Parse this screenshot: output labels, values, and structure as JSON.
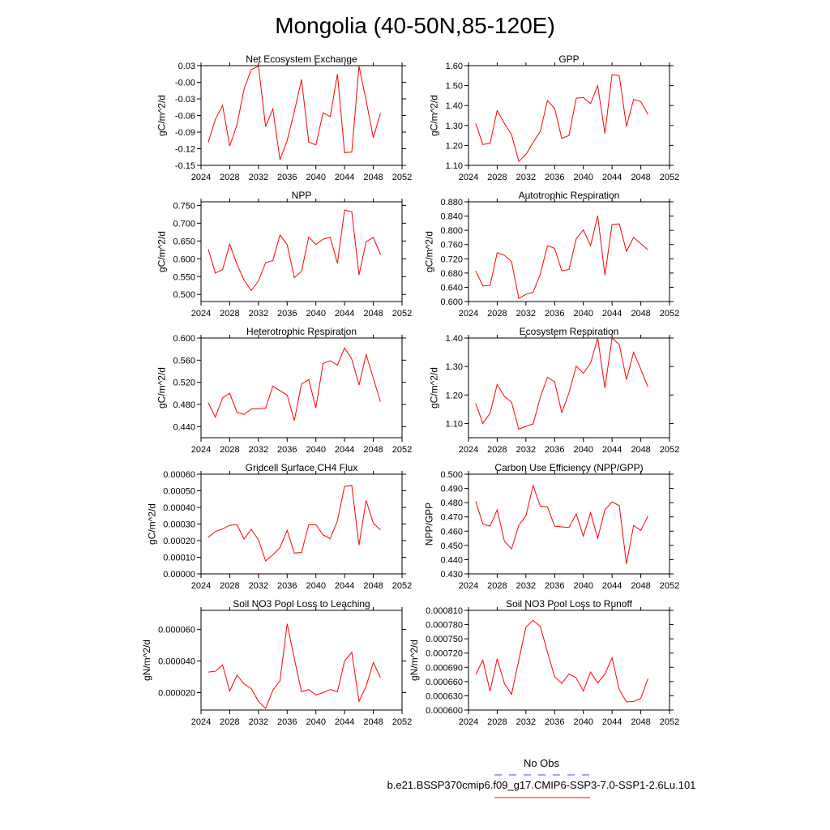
{
  "figure": {
    "title": "Mongolia (40-50N,85-120E)",
    "legend": [
      {
        "label": "No Obs",
        "color": "#4a4ad8",
        "dash": "dashed"
      },
      {
        "label": "b.e21.BSSP370cmip6.f09_g17.CMIP6-SSP3-7.0-SSP1-2.6Lu.101",
        "color": "#ff0000",
        "dash": "solid"
      }
    ],
    "series_color": "#ff0000"
  },
  "chart_data": [
    {
      "type": "line",
      "title": "Net Ecosystem Exchange",
      "xlabel": "",
      "ylabel": "gC/m^2/d",
      "xlim": [
        2024,
        2052
      ],
      "xticks": [
        2024,
        2028,
        2032,
        2036,
        2040,
        2044,
        2048,
        2052
      ],
      "xticklabels": [
        "2024",
        "2028",
        "2032",
        "2036",
        "2040",
        "2044",
        "2048",
        "2052"
      ],
      "ylim": [
        -0.15,
        0.03
      ],
      "yticks": [
        -0.15,
        -0.12,
        -0.09,
        -0.06,
        -0.03,
        0.0,
        0.03
      ],
      "yticklabels": [
        "-0.15",
        "-0.12",
        "-0.09",
        "-0.06",
        "-0.03",
        "-0.00",
        "0.03"
      ],
      "x": [
        2025,
        2026,
        2027,
        2028,
        2029,
        2030,
        2031,
        2032,
        2033,
        2034,
        2035,
        2036,
        2037,
        2038,
        2039,
        2040,
        2041,
        2042,
        2043,
        2044,
        2045,
        2046,
        2047,
        2048,
        2049
      ],
      "y": [
        -0.108,
        -0.067,
        -0.042,
        -0.115,
        -0.077,
        -0.012,
        0.023,
        0.029,
        -0.08,
        -0.048,
        -0.14,
        -0.105,
        -0.053,
        0.005,
        -0.108,
        -0.113,
        -0.055,
        -0.062,
        0.015,
        -0.127,
        -0.126,
        0.029,
        -0.033,
        -0.1,
        -0.056
      ]
    },
    {
      "type": "line",
      "title": "GPP",
      "xlabel": "",
      "ylabel": "gC/m^2/d",
      "xlim": [
        2024,
        2052
      ],
      "xticks": [
        2024,
        2028,
        2032,
        2036,
        2040,
        2044,
        2048,
        2052
      ],
      "xticklabels": [
        "2024",
        "2028",
        "2032",
        "2036",
        "2040",
        "2044",
        "2048",
        "2052"
      ],
      "ylim": [
        1.1,
        1.6
      ],
      "yticks": [
        1.1,
        1.2,
        1.3,
        1.4,
        1.5,
        1.6
      ],
      "yticklabels": [
        "1.10",
        "1.20",
        "1.30",
        "1.40",
        "1.50",
        "1.60"
      ],
      "x": [
        2025,
        2026,
        2027,
        2028,
        2029,
        2030,
        2031,
        2032,
        2033,
        2034,
        2035,
        2036,
        2037,
        2038,
        2039,
        2040,
        2041,
        2042,
        2043,
        2044,
        2045,
        2046,
        2047,
        2048,
        2049
      ],
      "y": [
        1.31,
        1.205,
        1.21,
        1.375,
        1.31,
        1.255,
        1.12,
        1.155,
        1.215,
        1.27,
        1.425,
        1.385,
        1.235,
        1.25,
        1.437,
        1.44,
        1.41,
        1.5,
        1.26,
        1.555,
        1.55,
        1.295,
        1.43,
        1.42,
        1.355
      ]
    },
    {
      "type": "line",
      "title": "NPP",
      "xlabel": "",
      "ylabel": "gC/m^2/d",
      "xlim": [
        2024,
        2052
      ],
      "xticks": [
        2024,
        2028,
        2032,
        2036,
        2040,
        2044,
        2048,
        2052
      ],
      "xticklabels": [
        "2024",
        "2028",
        "2032",
        "2036",
        "2040",
        "2044",
        "2048",
        "2052"
      ],
      "ylim": [
        0.48,
        0.76
      ],
      "yticks": [
        0.5,
        0.55,
        0.6,
        0.65,
        0.7,
        0.75
      ],
      "yticklabels": [
        "0.500",
        "0.550",
        "0.600",
        "0.650",
        "0.700",
        "0.750"
      ],
      "x": [
        2025,
        2026,
        2027,
        2028,
        2029,
        2030,
        2031,
        2032,
        2033,
        2034,
        2035,
        2036,
        2037,
        2038,
        2039,
        2040,
        2041,
        2042,
        2043,
        2044,
        2045,
        2046,
        2047,
        2048,
        2049
      ],
      "y": [
        0.627,
        0.56,
        0.57,
        0.641,
        0.585,
        0.54,
        0.511,
        0.538,
        0.589,
        0.595,
        0.667,
        0.64,
        0.547,
        0.565,
        0.661,
        0.64,
        0.655,
        0.661,
        0.587,
        0.737,
        0.732,
        0.555,
        0.648,
        0.66,
        0.612
      ]
    },
    {
      "type": "line",
      "title": "Autotrophic Respiration",
      "xlabel": "",
      "ylabel": "gC/m^2/d",
      "xlim": [
        2024,
        2052
      ],
      "xticks": [
        2024,
        2028,
        2032,
        2036,
        2040,
        2044,
        2048,
        2052
      ],
      "xticklabels": [
        "2024",
        "2028",
        "2032",
        "2036",
        "2040",
        "2044",
        "2048",
        "2052"
      ],
      "ylim": [
        0.6,
        0.88
      ],
      "yticks": [
        0.6,
        0.64,
        0.68,
        0.72,
        0.76,
        0.8,
        0.84,
        0.88
      ],
      "yticklabels": [
        "0.600",
        "0.640",
        "0.680",
        "0.720",
        "0.760",
        "0.800",
        "0.840",
        "0.880"
      ],
      "x": [
        2025,
        2026,
        2027,
        2028,
        2029,
        2030,
        2031,
        2032,
        2033,
        2034,
        2035,
        2036,
        2037,
        2038,
        2039,
        2040,
        2041,
        2042,
        2043,
        2044,
        2045,
        2046,
        2047,
        2048,
        2049
      ],
      "y": [
        0.686,
        0.644,
        0.645,
        0.737,
        0.73,
        0.712,
        0.609,
        0.62,
        0.626,
        0.677,
        0.757,
        0.749,
        0.686,
        0.69,
        0.776,
        0.801,
        0.757,
        0.841,
        0.674,
        0.816,
        0.818,
        0.741,
        0.78,
        0.762,
        0.745
      ]
    },
    {
      "type": "line",
      "title": "Heterotrophic Respiration",
      "xlabel": "",
      "ylabel": "gC/m^2/d",
      "xlim": [
        2024,
        2052
      ],
      "xticks": [
        2024,
        2028,
        2032,
        2036,
        2040,
        2044,
        2048,
        2052
      ],
      "xticklabels": [
        "2024",
        "2028",
        "2032",
        "2036",
        "2040",
        "2044",
        "2048",
        "2052"
      ],
      "ylim": [
        0.42,
        0.6
      ],
      "yticks": [
        0.44,
        0.48,
        0.52,
        0.56,
        0.6
      ],
      "yticklabels": [
        "0.440",
        "0.480",
        "0.520",
        "0.560",
        "0.600"
      ],
      "x": [
        2025,
        2026,
        2027,
        2028,
        2029,
        2030,
        2031,
        2032,
        2033,
        2034,
        2035,
        2036,
        2037,
        2038,
        2039,
        2040,
        2041,
        2042,
        2043,
        2044,
        2045,
        2046,
        2047,
        2048,
        2049
      ],
      "y": [
        0.483,
        0.457,
        0.492,
        0.5,
        0.466,
        0.462,
        0.472,
        0.472,
        0.473,
        0.513,
        0.505,
        0.497,
        0.451,
        0.517,
        0.525,
        0.474,
        0.554,
        0.559,
        0.551,
        0.582,
        0.562,
        0.515,
        0.57,
        0.527,
        0.485
      ]
    },
    {
      "type": "line",
      "title": "Ecosystem Respiration",
      "xlabel": "",
      "ylabel": "gC/m^2/d",
      "xlim": [
        2024,
        2052
      ],
      "xticks": [
        2024,
        2028,
        2032,
        2036,
        2040,
        2044,
        2048,
        2052
      ],
      "xticklabels": [
        "2024",
        "2028",
        "2032",
        "2036",
        "2040",
        "2044",
        "2048",
        "2052"
      ],
      "ylim": [
        1.05,
        1.4
      ],
      "yticks": [
        1.1,
        1.2,
        1.3,
        1.4
      ],
      "yticklabels": [
        "1.10",
        "1.20",
        "1.30",
        "1.40"
      ],
      "x": [
        2025,
        2026,
        2027,
        2028,
        2029,
        2030,
        2031,
        2032,
        2033,
        2034,
        2035,
        2036,
        2037,
        2038,
        2039,
        2040,
        2041,
        2042,
        2043,
        2044,
        2045,
        2046,
        2047,
        2048,
        2049
      ],
      "y": [
        1.17,
        1.1,
        1.136,
        1.237,
        1.195,
        1.175,
        1.08,
        1.09,
        1.098,
        1.192,
        1.262,
        1.246,
        1.138,
        1.208,
        1.301,
        1.276,
        1.312,
        1.4,
        1.225,
        1.4,
        1.377,
        1.254,
        1.35,
        1.29,
        1.228
      ]
    },
    {
      "type": "line",
      "title": "Gridcell Surface CH4 Flux",
      "xlabel": "",
      "ylabel": "gC/m^2/d",
      "xlim": [
        2024,
        2052
      ],
      "xticks": [
        2024,
        2028,
        2032,
        2036,
        2040,
        2044,
        2048,
        2052
      ],
      "xticklabels": [
        "2024",
        "2028",
        "2032",
        "2036",
        "2040",
        "2044",
        "2048",
        "2052"
      ],
      "ylim": [
        0.0,
        0.0006
      ],
      "yticks": [
        0.0,
        0.0001,
        0.0002,
        0.0003,
        0.0004,
        0.0005,
        0.0006
      ],
      "yticklabels": [
        "0.00000",
        "0.00010",
        "0.00020",
        "0.00030",
        "0.00040",
        "0.00050",
        "0.00060"
      ],
      "x": [
        2025,
        2026,
        2027,
        2028,
        2029,
        2030,
        2031,
        2032,
        2033,
        2034,
        2035,
        2036,
        2037,
        2038,
        2039,
        2040,
        2041,
        2042,
        2043,
        2044,
        2045,
        2046,
        2047,
        2048,
        2049
      ],
      "y": [
        0.00022,
        0.000255,
        0.00027,
        0.000292,
        0.000296,
        0.00021,
        0.000268,
        0.000205,
        7.8e-05,
        0.000114,
        0.000158,
        0.000262,
        0.000125,
        0.00013,
        0.000295,
        0.000297,
        0.000234,
        0.000212,
        0.00032,
        0.000527,
        0.000531,
        0.000172,
        0.000442,
        0.000305,
        0.000265
      ]
    },
    {
      "type": "line",
      "title": "Carbon Use Efficiency (NPP/GPP)",
      "xlabel": "",
      "ylabel": "NPP/GPP",
      "xlim": [
        2024,
        2052
      ],
      "xticks": [
        2024,
        2028,
        2032,
        2036,
        2040,
        2044,
        2048,
        2052
      ],
      "xticklabels": [
        "2024",
        "2028",
        "2032",
        "2036",
        "2040",
        "2044",
        "2048",
        "2052"
      ],
      "ylim": [
        0.43,
        0.5
      ],
      "yticks": [
        0.43,
        0.44,
        0.45,
        0.46,
        0.47,
        0.48,
        0.49,
        0.5
      ],
      "yticklabels": [
        "0.430",
        "0.440",
        "0.450",
        "0.460",
        "0.470",
        "0.480",
        "0.490",
        "0.500"
      ],
      "x": [
        2025,
        2026,
        2027,
        2028,
        2029,
        2030,
        2031,
        2032,
        2033,
        2034,
        2035,
        2036,
        2037,
        2038,
        2039,
        2040,
        2041,
        2042,
        2043,
        2044,
        2045,
        2046,
        2047,
        2048,
        2049
      ],
      "y": [
        0.481,
        0.465,
        0.4635,
        0.475,
        0.453,
        0.4475,
        0.464,
        0.471,
        0.492,
        0.4775,
        0.477,
        0.4635,
        0.463,
        0.4625,
        0.472,
        0.4565,
        0.473,
        0.455,
        0.475,
        0.4805,
        0.478,
        0.437,
        0.464,
        0.4605,
        0.4705
      ]
    },
    {
      "type": "line",
      "title": "Soil NO3 Pool Loss to Leaching",
      "xlabel": "",
      "ylabel": "gN/m^2/d",
      "xlim": [
        2024,
        2052
      ],
      "xticks": [
        2024,
        2028,
        2032,
        2036,
        2040,
        2044,
        2048,
        2052
      ],
      "xticklabels": [
        "2024",
        "2028",
        "2032",
        "2036",
        "2040",
        "2044",
        "2048",
        "2052"
      ],
      "ylim": [
        9e-06,
        7.2e-05
      ],
      "yticks": [
        2e-05,
        4e-05,
        6e-05
      ],
      "yticklabels": [
        "0.000020",
        "0.000040",
        "0.000060"
      ],
      "x": [
        2025,
        2026,
        2027,
        2028,
        2029,
        2030,
        2031,
        2032,
        2033,
        2034,
        2035,
        2036,
        2037,
        2038,
        2039,
        2040,
        2041,
        2042,
        2043,
        2044,
        2045,
        2046,
        2047,
        2048,
        2049
      ],
      "y": [
        3.3e-05,
        3.35e-05,
        3.75e-05,
        2.1e-05,
        3.1e-05,
        2.55e-05,
        2.25e-05,
        1.45e-05,
        1e-05,
        2.15e-05,
        2.75e-05,
        6.35e-05,
        4.15e-05,
        2.05e-05,
        2.2e-05,
        1.85e-05,
        2e-05,
        2.2e-05,
        2.05e-05,
        4e-05,
        4.55e-05,
        1.45e-05,
        2.4e-05,
        3.9e-05,
        2.95e-05
      ]
    },
    {
      "type": "line",
      "title": "Soil NO3 Pool Loss to Runoff",
      "xlabel": "",
      "ylabel": "gN/m^2/d",
      "xlim": [
        2024,
        2052
      ],
      "xticks": [
        2024,
        2028,
        2032,
        2036,
        2040,
        2044,
        2048,
        2052
      ],
      "xticklabels": [
        "2024",
        "2028",
        "2032",
        "2036",
        "2040",
        "2044",
        "2048",
        "2052"
      ],
      "ylim": [
        0.0006,
        0.00081
      ],
      "yticks": [
        0.0006,
        0.00063,
        0.00066,
        0.00069,
        0.00072,
        0.00075,
        0.00078,
        0.00081
      ],
      "yticklabels": [
        "0.000600",
        "0.000630",
        "0.000660",
        "0.000690",
        "0.000720",
        "0.000750",
        "0.000780",
        "0.000810"
      ],
      "x": [
        2025,
        2026,
        2027,
        2028,
        2029,
        2030,
        2031,
        2032,
        2033,
        2034,
        2035,
        2036,
        2037,
        2038,
        2039,
        2040,
        2041,
        2042,
        2043,
        2044,
        2045,
        2046,
        2047,
        2048,
        2049
      ],
      "y": [
        0.000675,
        0.000705,
        0.00064,
        0.000708,
        0.000656,
        0.000633,
        0.000705,
        0.000775,
        0.000789,
        0.000776,
        0.000722,
        0.00067,
        0.000656,
        0.000676,
        0.000668,
        0.00064,
        0.00068,
        0.000657,
        0.000676,
        0.00071,
        0.000643,
        0.000617,
        0.000618,
        0.000625,
        0.000666
      ]
    }
  ]
}
